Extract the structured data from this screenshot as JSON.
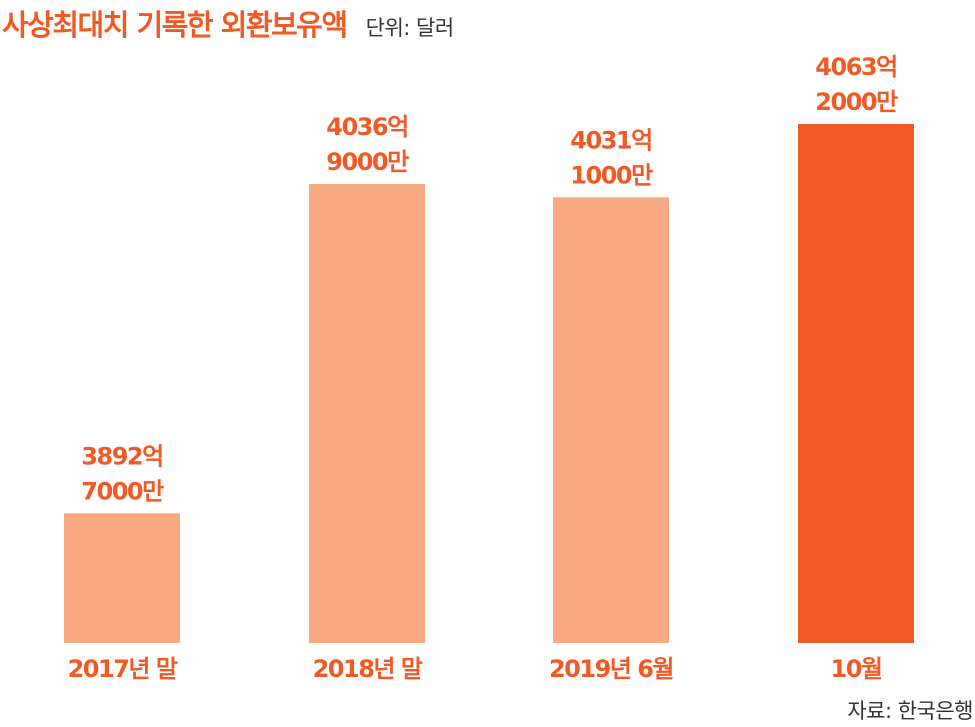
{
  "header": {
    "title": "사상최대치 기록한 외환보유액",
    "unit": "단위: 달러"
  },
  "footer": {
    "source": "자료: 한국은행"
  },
  "colors": {
    "bar_light": "#f9a982",
    "bar_highlight": "#f15a24",
    "label": "#f15a24",
    "category": "#f15a24"
  },
  "chart_data": {
    "type": "bar",
    "categories": [
      "2017년 말",
      "2018년 말",
      "2019년 6월",
      "10월"
    ],
    "values": [
      3892.7,
      4036.9,
      4031.1,
      4063.2
    ],
    "value_unit": "억 달러",
    "data_labels": [
      [
        "3892억",
        "7000만"
      ],
      [
        "4036억",
        "9000만"
      ],
      [
        "4031억",
        "1000만"
      ],
      [
        "4063억",
        "2000만"
      ]
    ],
    "highlight_index": 3,
    "title": "사상최대치 기록한 외환보유액",
    "xlabel": "",
    "ylabel": "",
    "grid": false,
    "legend": "none"
  }
}
